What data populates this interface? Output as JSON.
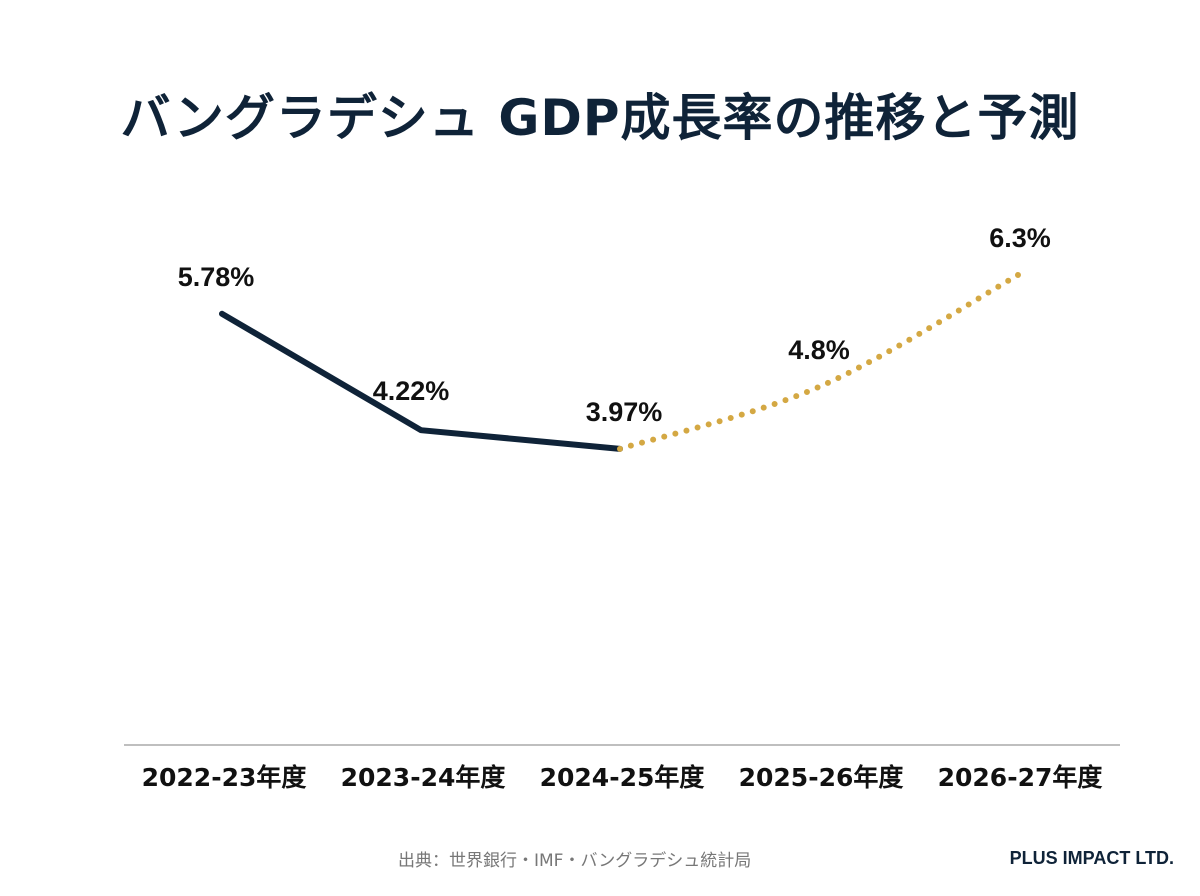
{
  "chart_data": {
    "type": "line",
    "title": "バングラデシュ GDP成長率の推移と予測",
    "categories": [
      "2022-23年度",
      "2023-24年度",
      "2024-25年度",
      "2025-26年度",
      "2026-27年度"
    ],
    "series": [
      {
        "style": "solid",
        "color": "#0f2338",
        "values": [
          5.78,
          4.22,
          3.97,
          null,
          null
        ]
      },
      {
        "style": "dotted",
        "color": "#d4a843",
        "values": [
          null,
          null,
          3.97,
          4.8,
          6.3
        ]
      }
    ],
    "data_labels": [
      "5.78%",
      "4.22%",
      "3.97%",
      "4.8%",
      "6.3%"
    ],
    "values": [
      5.78,
      4.22,
      3.97,
      4.8,
      6.3
    ],
    "ylim": [
      0,
      7
    ],
    "grid": false,
    "xlabel": "",
    "ylabel": ""
  },
  "footer": {
    "source": "出典：世界銀行・IMF・バングラデシュ統計局",
    "brand": "PLUS IMPACT LTD."
  }
}
